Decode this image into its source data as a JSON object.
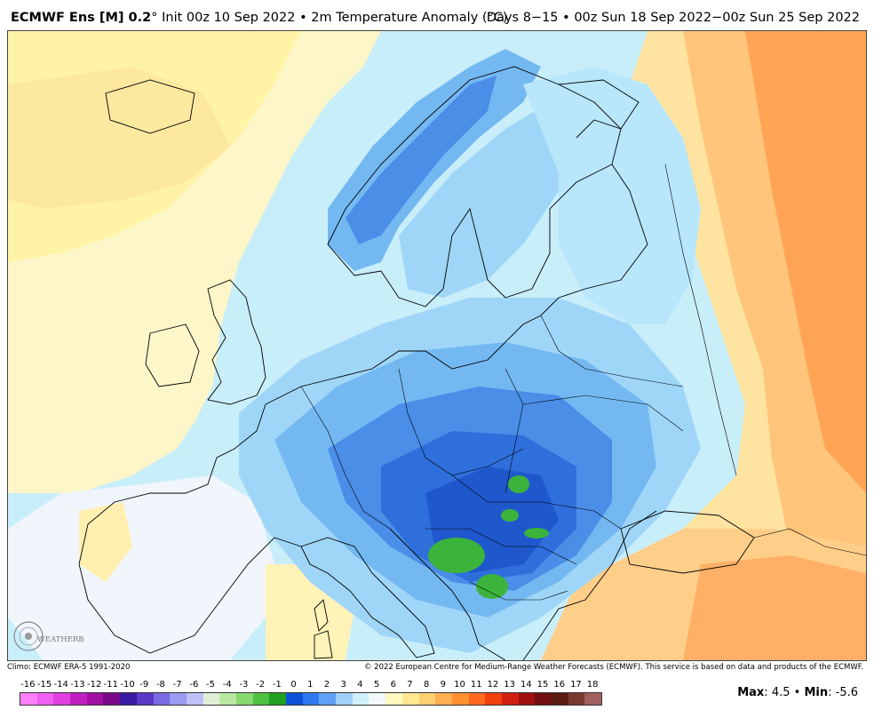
{
  "header": {
    "model": "ECMWF Ens [M] 0.2",
    "degree": "°",
    "init": "Init 00z 10 Sep 2022",
    "separator": "•",
    "field": "2m Temperature Anomaly (°C)",
    "days": "Days 8−15",
    "period": "00z Sun 18 Sep 2022−00z Sun 25 Sep 2022"
  },
  "credits": {
    "left": "Climo: ECMWF ERA-5 1991-2020",
    "right": "© 2022 European Centre for Medium-Range Weather Forecasts (ECMWF). This service is based on data and products of the ECMWF."
  },
  "logo": {
    "icon": "weatherbell-logo",
    "text": "WEATHERBELL"
  },
  "stats": {
    "max_label": "Max",
    "max_value": "4.5",
    "sep": "•",
    "min_label": "Min",
    "min_value": "-5.6"
  },
  "colorbar": {
    "labels": [
      "-16",
      "-15",
      "-14",
      "-13",
      "-12",
      "-11",
      "-10",
      "-9",
      "-8",
      "-7",
      "-6",
      "-5",
      "-4",
      "-3",
      "-2",
      "-1",
      "0",
      "1",
      "2",
      "3",
      "4",
      "5",
      "6",
      "7",
      "8",
      "9",
      "10",
      "11",
      "12",
      "13",
      "14",
      "15",
      "16",
      "17",
      "18"
    ],
    "colors": [
      "#ff80ff",
      "#f060f0",
      "#e040e0",
      "#c020c0",
      "#a010a0",
      "#7a0a8a",
      "#3a1aa0",
      "#5a3ac8",
      "#7a6ae0",
      "#9a9af0",
      "#c0c0f8",
      "#e0f0d8",
      "#b8e8a0",
      "#88d870",
      "#50c040",
      "#20a020",
      "#1050d8",
      "#3078f0",
      "#60a0f8",
      "#a0d0f8",
      "#d0f0fc",
      "#f2f8fc",
      "#fff8c0",
      "#ffe890",
      "#ffd070",
      "#ffb050",
      "#ff9030",
      "#ff6820",
      "#f04010",
      "#d02010",
      "#a01010",
      "#701010",
      "#5a1a10",
      "#7a3a30",
      "#a06060"
    ]
  },
  "map": {
    "legend_color_warm1": "#fff3a8",
    "legend_color_warm2": "#ffd27a",
    "legend_color_warm3": "#ffa24a",
    "legend_color_cold1": "#d0f0fc",
    "legend_color_cold2": "#9fd6f8",
    "legend_color_cold3": "#5aa2ee",
    "legend_color_cold4": "#2f6fdc",
    "legend_color_cold5": "#1a4fc8",
    "legend_color_green": "#3cb43c"
  }
}
